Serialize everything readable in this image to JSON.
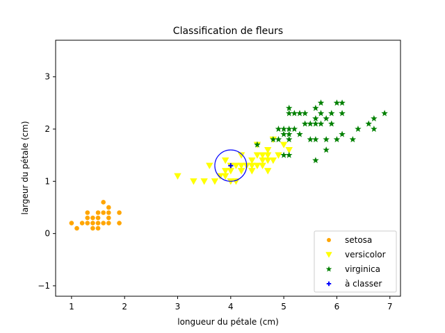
{
  "chart_data": {
    "type": "scatter",
    "title": "Classification de fleurs",
    "xlabel": "longueur du pétale (cm)",
    "ylabel": "largeur du pétale (cm)",
    "xlim": [
      0.7,
      7.2
    ],
    "ylim": [
      -1.2,
      3.7
    ],
    "xticks": [
      1,
      2,
      3,
      4,
      5,
      6,
      7
    ],
    "yticks": [
      -1,
      0,
      1,
      2,
      3
    ],
    "grid": false,
    "legend_position": "lower-right",
    "series": [
      {
        "name": "setosa",
        "color": "#ffa500",
        "marker": "circle",
        "points": [
          [
            1.0,
            0.2
          ],
          [
            1.1,
            0.1
          ],
          [
            1.2,
            0.2
          ],
          [
            1.3,
            0.2
          ],
          [
            1.3,
            0.3
          ],
          [
            1.3,
            0.4
          ],
          [
            1.4,
            0.1
          ],
          [
            1.4,
            0.2
          ],
          [
            1.4,
            0.3
          ],
          [
            1.5,
            0.1
          ],
          [
            1.5,
            0.2
          ],
          [
            1.5,
            0.3
          ],
          [
            1.5,
            0.4
          ],
          [
            1.6,
            0.2
          ],
          [
            1.6,
            0.4
          ],
          [
            1.6,
            0.6
          ],
          [
            1.7,
            0.2
          ],
          [
            1.7,
            0.3
          ],
          [
            1.7,
            0.4
          ],
          [
            1.7,
            0.5
          ],
          [
            1.9,
            0.2
          ],
          [
            1.9,
            0.4
          ]
        ]
      },
      {
        "name": "versicolor",
        "color": "#ffff00",
        "marker": "triangle-down",
        "points": [
          [
            3.0,
            1.1
          ],
          [
            3.3,
            1.0
          ],
          [
            3.5,
            1.0
          ],
          [
            3.6,
            1.3
          ],
          [
            3.7,
            1.0
          ],
          [
            3.8,
            1.1
          ],
          [
            3.9,
            1.1
          ],
          [
            3.9,
            1.2
          ],
          [
            3.9,
            1.4
          ],
          [
            4.0,
            1.0
          ],
          [
            4.0,
            1.2
          ],
          [
            4.0,
            1.3
          ],
          [
            4.1,
            1.0
          ],
          [
            4.1,
            1.3
          ],
          [
            4.2,
            1.2
          ],
          [
            4.2,
            1.3
          ],
          [
            4.2,
            1.5
          ],
          [
            4.3,
            1.3
          ],
          [
            4.4,
            1.2
          ],
          [
            4.4,
            1.3
          ],
          [
            4.4,
            1.4
          ],
          [
            4.5,
            1.3
          ],
          [
            4.5,
            1.5
          ],
          [
            4.5,
            1.7
          ],
          [
            4.6,
            1.3
          ],
          [
            4.6,
            1.4
          ],
          [
            4.6,
            1.5
          ],
          [
            4.7,
            1.2
          ],
          [
            4.7,
            1.4
          ],
          [
            4.7,
            1.5
          ],
          [
            4.7,
            1.6
          ],
          [
            4.8,
            1.4
          ],
          [
            4.8,
            1.8
          ],
          [
            4.9,
            1.5
          ],
          [
            5.0,
            1.7
          ],
          [
            5.1,
            1.6
          ]
        ]
      },
      {
        "name": "virginica",
        "color": "#008000",
        "marker": "star",
        "points": [
          [
            4.5,
            1.7
          ],
          [
            4.8,
            1.8
          ],
          [
            4.9,
            1.8
          ],
          [
            4.9,
            2.0
          ],
          [
            5.0,
            1.5
          ],
          [
            5.0,
            1.9
          ],
          [
            5.0,
            2.0
          ],
          [
            5.1,
            1.5
          ],
          [
            5.1,
            1.8
          ],
          [
            5.1,
            1.9
          ],
          [
            5.1,
            2.0
          ],
          [
            5.1,
            2.3
          ],
          [
            5.1,
            2.4
          ],
          [
            5.2,
            2.0
          ],
          [
            5.2,
            2.3
          ],
          [
            5.3,
            1.9
          ],
          [
            5.3,
            2.3
          ],
          [
            5.4,
            2.1
          ],
          [
            5.4,
            2.3
          ],
          [
            5.5,
            1.8
          ],
          [
            5.5,
            2.1
          ],
          [
            5.6,
            1.4
          ],
          [
            5.6,
            1.8
          ],
          [
            5.6,
            2.1
          ],
          [
            5.6,
            2.2
          ],
          [
            5.6,
            2.4
          ],
          [
            5.7,
            2.1
          ],
          [
            5.7,
            2.3
          ],
          [
            5.7,
            2.5
          ],
          [
            5.8,
            1.6
          ],
          [
            5.8,
            1.8
          ],
          [
            5.8,
            2.2
          ],
          [
            5.9,
            2.1
          ],
          [
            5.9,
            2.3
          ],
          [
            6.0,
            1.8
          ],
          [
            6.0,
            2.5
          ],
          [
            6.1,
            1.9
          ],
          [
            6.1,
            2.3
          ],
          [
            6.1,
            2.5
          ],
          [
            6.3,
            1.8
          ],
          [
            6.4,
            2.0
          ],
          [
            6.6,
            2.1
          ],
          [
            6.7,
            2.0
          ],
          [
            6.7,
            2.2
          ],
          [
            6.9,
            2.3
          ]
        ]
      },
      {
        "name": "à classer",
        "color": "#0000ff",
        "marker": "plus",
        "points": [
          [
            4.0,
            1.3
          ]
        ]
      }
    ],
    "annotations": [
      {
        "type": "circle",
        "center": [
          4.0,
          1.3
        ],
        "radius": 0.3,
        "color": "#0000ff"
      }
    ]
  }
}
